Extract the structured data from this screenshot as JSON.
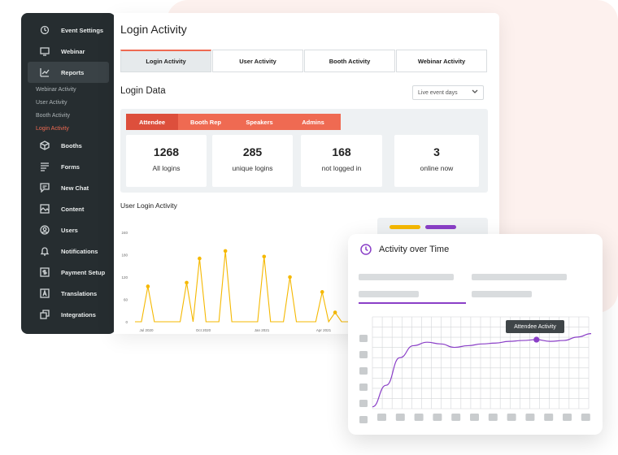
{
  "sidebar": {
    "items": [
      {
        "label": "Event Settings",
        "icon": "event-settings-icon"
      },
      {
        "label": "Webinar",
        "icon": "webinar-icon"
      },
      {
        "label": "Reports",
        "icon": "reports-icon"
      },
      {
        "label": "Booths",
        "icon": "booths-icon"
      },
      {
        "label": "Forms",
        "icon": "forms-icon"
      },
      {
        "label": "New Chat",
        "icon": "chat-icon"
      },
      {
        "label": "Content",
        "icon": "content-icon"
      },
      {
        "label": "Users",
        "icon": "users-icon"
      },
      {
        "label": "Notifications",
        "icon": "bell-icon"
      },
      {
        "label": "Payment Setup",
        "icon": "payment-icon"
      },
      {
        "label": "Translations",
        "icon": "translations-icon"
      },
      {
        "label": "Integrations",
        "icon": "integrations-icon"
      }
    ],
    "subitems": [
      "Webinar Activity",
      "User Activity",
      "Booth Activity",
      "Login Activity"
    ],
    "active_item": "Reports",
    "active_subitem": "Login Activity"
  },
  "main": {
    "title": "Login Activity",
    "tabs": [
      "Login Activity",
      "User Activity",
      "Booth Activity",
      "Webinar Activity"
    ],
    "active_tab": "Login Activity",
    "section_title": "Login Data",
    "dropdown_value": "Live event days",
    "role_tabs": [
      "Attendee",
      "Booth Rep",
      "Speakers",
      "Admins"
    ],
    "active_role_tab": "Attendee",
    "stats": [
      {
        "value": "1268",
        "label": "All logins"
      },
      {
        "value": "285",
        "label": "unique logins"
      },
      {
        "value": "168",
        "label": "not logged in"
      },
      {
        "value": "3",
        "label": "online now"
      }
    ],
    "chart_title": "User Login Activity"
  },
  "chart_data": [
    {
      "type": "line",
      "title": "User Login Activity",
      "yticks": [
        "240",
        "180",
        "120",
        "60",
        "0"
      ],
      "ylim": [
        0,
        240
      ],
      "xticks": [
        "Jul 2020",
        "Oct 2020",
        "Jan 2021",
        "Apr 2021"
      ],
      "series": [
        {
          "values": [
            0,
            0,
            95,
            0,
            0,
            0,
            0,
            0,
            105,
            0,
            170,
            0,
            0,
            0,
            190,
            0,
            0,
            0,
            0,
            0,
            175,
            0,
            0,
            0,
            120,
            0,
            0,
            0,
            0,
            80,
            0,
            25,
            0,
            0
          ]
        }
      ],
      "colors": {
        "line": "#f5b800",
        "point": "#f5b800"
      }
    },
    {
      "type": "line",
      "title": "Activity over Time",
      "annotation": "Attendee Activity",
      "series": [
        {
          "values": [
            5,
            30,
            62,
            76,
            80,
            78,
            74,
            76,
            78,
            79,
            81,
            82,
            83,
            81,
            82,
            86,
            90
          ]
        }
      ],
      "colors": {
        "line": "#8a3fc7"
      }
    }
  ],
  "legend": {
    "colors": [
      "#f5b800",
      "#8a3fc7"
    ]
  },
  "activity": {
    "title": "Activity over Time",
    "tooltip": "Attendee Activity"
  },
  "colors": {
    "accent": "#ef6a52",
    "sidebar": "#262d30",
    "purple": "#8a3fc7",
    "yellow": "#f5b800"
  }
}
